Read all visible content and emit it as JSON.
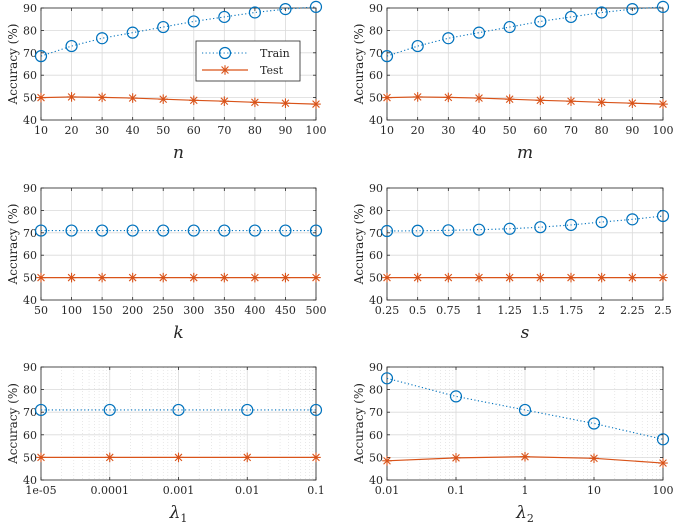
{
  "colors": {
    "train": "#0072BD",
    "test": "#D95319",
    "grid": "#dadada",
    "axes": "#262626"
  },
  "legend": {
    "train_label": "Train",
    "test_label": "Test",
    "placement": "top-right of first panel",
    "train_marker": "circle",
    "test_marker": "asterisk"
  },
  "chart_data": [
    {
      "type": "line",
      "xlabel": "n",
      "xlabel_sub": "",
      "ylabel": "Accuracy (%)",
      "xscale": "linear",
      "xlim": [
        10,
        100
      ],
      "ylim": [
        40,
        90
      ],
      "x": [
        10,
        20,
        30,
        40,
        50,
        60,
        70,
        80,
        90,
        100
      ],
      "xticks": [
        10,
        20,
        30,
        40,
        50,
        60,
        70,
        80,
        90,
        100
      ],
      "xtick_labels": [
        "10",
        "20",
        "30",
        "40",
        "50",
        "60",
        "70",
        "80",
        "90",
        "100"
      ],
      "yticks": [
        40,
        50,
        60,
        70,
        80,
        90
      ],
      "grid": true,
      "show_legend": true,
      "series": [
        {
          "name": "Train",
          "values": [
            68.5,
            73,
            76.5,
            79,
            81.5,
            84,
            86,
            88,
            89.5,
            90.5
          ]
        },
        {
          "name": "Test",
          "values": [
            50,
            50.3,
            50.1,
            49.8,
            49.3,
            48.8,
            48.4,
            47.9,
            47.5,
            47.1
          ]
        }
      ]
    },
    {
      "type": "line",
      "xlabel": "m",
      "xlabel_sub": "",
      "ylabel": "Accuracy (%)",
      "xscale": "linear",
      "xlim": [
        10,
        100
      ],
      "ylim": [
        40,
        90
      ],
      "x": [
        10,
        20,
        30,
        40,
        50,
        60,
        70,
        80,
        90,
        100
      ],
      "xticks": [
        10,
        20,
        30,
        40,
        50,
        60,
        70,
        80,
        90,
        100
      ],
      "xtick_labels": [
        "10",
        "20",
        "30",
        "40",
        "50",
        "60",
        "70",
        "80",
        "90",
        "100"
      ],
      "yticks": [
        40,
        50,
        60,
        70,
        80,
        90
      ],
      "grid": true,
      "show_legend": false,
      "series": [
        {
          "name": "Train",
          "values": [
            68.5,
            73,
            76.5,
            79,
            81.5,
            84,
            86,
            88,
            89.5,
            90.5
          ]
        },
        {
          "name": "Test",
          "values": [
            50,
            50.3,
            50.1,
            49.8,
            49.3,
            48.8,
            48.4,
            47.9,
            47.5,
            47.1
          ]
        }
      ]
    },
    {
      "type": "line",
      "xlabel": "k",
      "xlabel_sub": "",
      "ylabel": "Accuracy (%)",
      "xscale": "linear",
      "xlim": [
        50,
        500
      ],
      "ylim": [
        40,
        90
      ],
      "x": [
        50,
        100,
        150,
        200,
        250,
        300,
        350,
        400,
        450,
        500
      ],
      "xticks": [
        50,
        100,
        150,
        200,
        250,
        300,
        350,
        400,
        450,
        500
      ],
      "xtick_labels": [
        "50",
        "100",
        "150",
        "200",
        "250",
        "300",
        "350",
        "400",
        "450",
        "500"
      ],
      "yticks": [
        40,
        50,
        60,
        70,
        80,
        90
      ],
      "grid": true,
      "show_legend": false,
      "series": [
        {
          "name": "Train",
          "values": [
            71,
            71,
            71,
            71,
            71,
            71,
            71,
            71,
            71,
            71
          ]
        },
        {
          "name": "Test",
          "values": [
            50,
            50,
            50,
            50,
            50,
            50,
            50,
            50,
            50,
            50
          ]
        }
      ]
    },
    {
      "type": "line",
      "xlabel": "s",
      "xlabel_sub": "",
      "ylabel": "Accuracy (%)",
      "xscale": "linear",
      "xlim": [
        0.25,
        2.5
      ],
      "ylim": [
        40,
        90
      ],
      "x": [
        0.25,
        0.5,
        0.75,
        1,
        1.25,
        1.5,
        1.75,
        2,
        2.25,
        2.5
      ],
      "xticks": [
        0.25,
        0.5,
        0.75,
        1,
        1.25,
        1.5,
        1.75,
        2,
        2.25,
        2.5
      ],
      "xtick_labels": [
        "0.25",
        "0.5",
        "0.75",
        "1",
        "1.25",
        "1.5",
        "1.75",
        "2",
        "2.25",
        "2.5"
      ],
      "yticks": [
        40,
        50,
        60,
        70,
        80,
        90
      ],
      "grid": true,
      "show_legend": false,
      "series": [
        {
          "name": "Train",
          "values": [
            70.8,
            70.9,
            71.1,
            71.4,
            71.8,
            72.5,
            73.5,
            74.8,
            76,
            77.5
          ]
        },
        {
          "name": "Test",
          "values": [
            50,
            50,
            50,
            50,
            50,
            50,
            50,
            50,
            50,
            50
          ]
        }
      ]
    },
    {
      "type": "line",
      "xlabel": "λ",
      "xlabel_sub": "1",
      "ylabel": "Accuracy (%)",
      "xscale": "log",
      "xlim": [
        1e-05,
        0.1
      ],
      "ylim": [
        40,
        90
      ],
      "x": [
        1e-05,
        0.0001,
        0.001,
        0.01,
        0.1
      ],
      "xticks": [
        1e-05,
        0.0001,
        0.001,
        0.01,
        0.1
      ],
      "xtick_labels": [
        "1e-05",
        "0.0001",
        "0.001",
        "0.01",
        "0.1"
      ],
      "yticks": [
        40,
        50,
        60,
        70,
        80,
        90
      ],
      "grid": true,
      "minor_grid": true,
      "show_legend": false,
      "series": [
        {
          "name": "Train",
          "values": [
            71,
            71,
            71,
            71,
            71
          ]
        },
        {
          "name": "Test",
          "values": [
            50,
            50,
            50,
            50,
            50
          ]
        }
      ]
    },
    {
      "type": "line",
      "xlabel": "λ",
      "xlabel_sub": "2",
      "ylabel": "Accuracy (%)",
      "xscale": "log",
      "xlim": [
        0.01,
        100
      ],
      "ylim": [
        40,
        90
      ],
      "x": [
        0.01,
        0.1,
        1,
        10,
        100
      ],
      "xticks": [
        0.01,
        0.1,
        1,
        10,
        100
      ],
      "xtick_labels": [
        "0.01",
        "0.1",
        "1",
        "10",
        "100"
      ],
      "yticks": [
        40,
        50,
        60,
        70,
        80,
        90
      ],
      "grid": true,
      "minor_grid": true,
      "show_legend": false,
      "series": [
        {
          "name": "Train",
          "values": [
            85,
            77,
            71,
            65,
            58
          ]
        },
        {
          "name": "Test",
          "values": [
            48.5,
            49.8,
            50.3,
            49.6,
            47.5
          ]
        }
      ]
    }
  ]
}
